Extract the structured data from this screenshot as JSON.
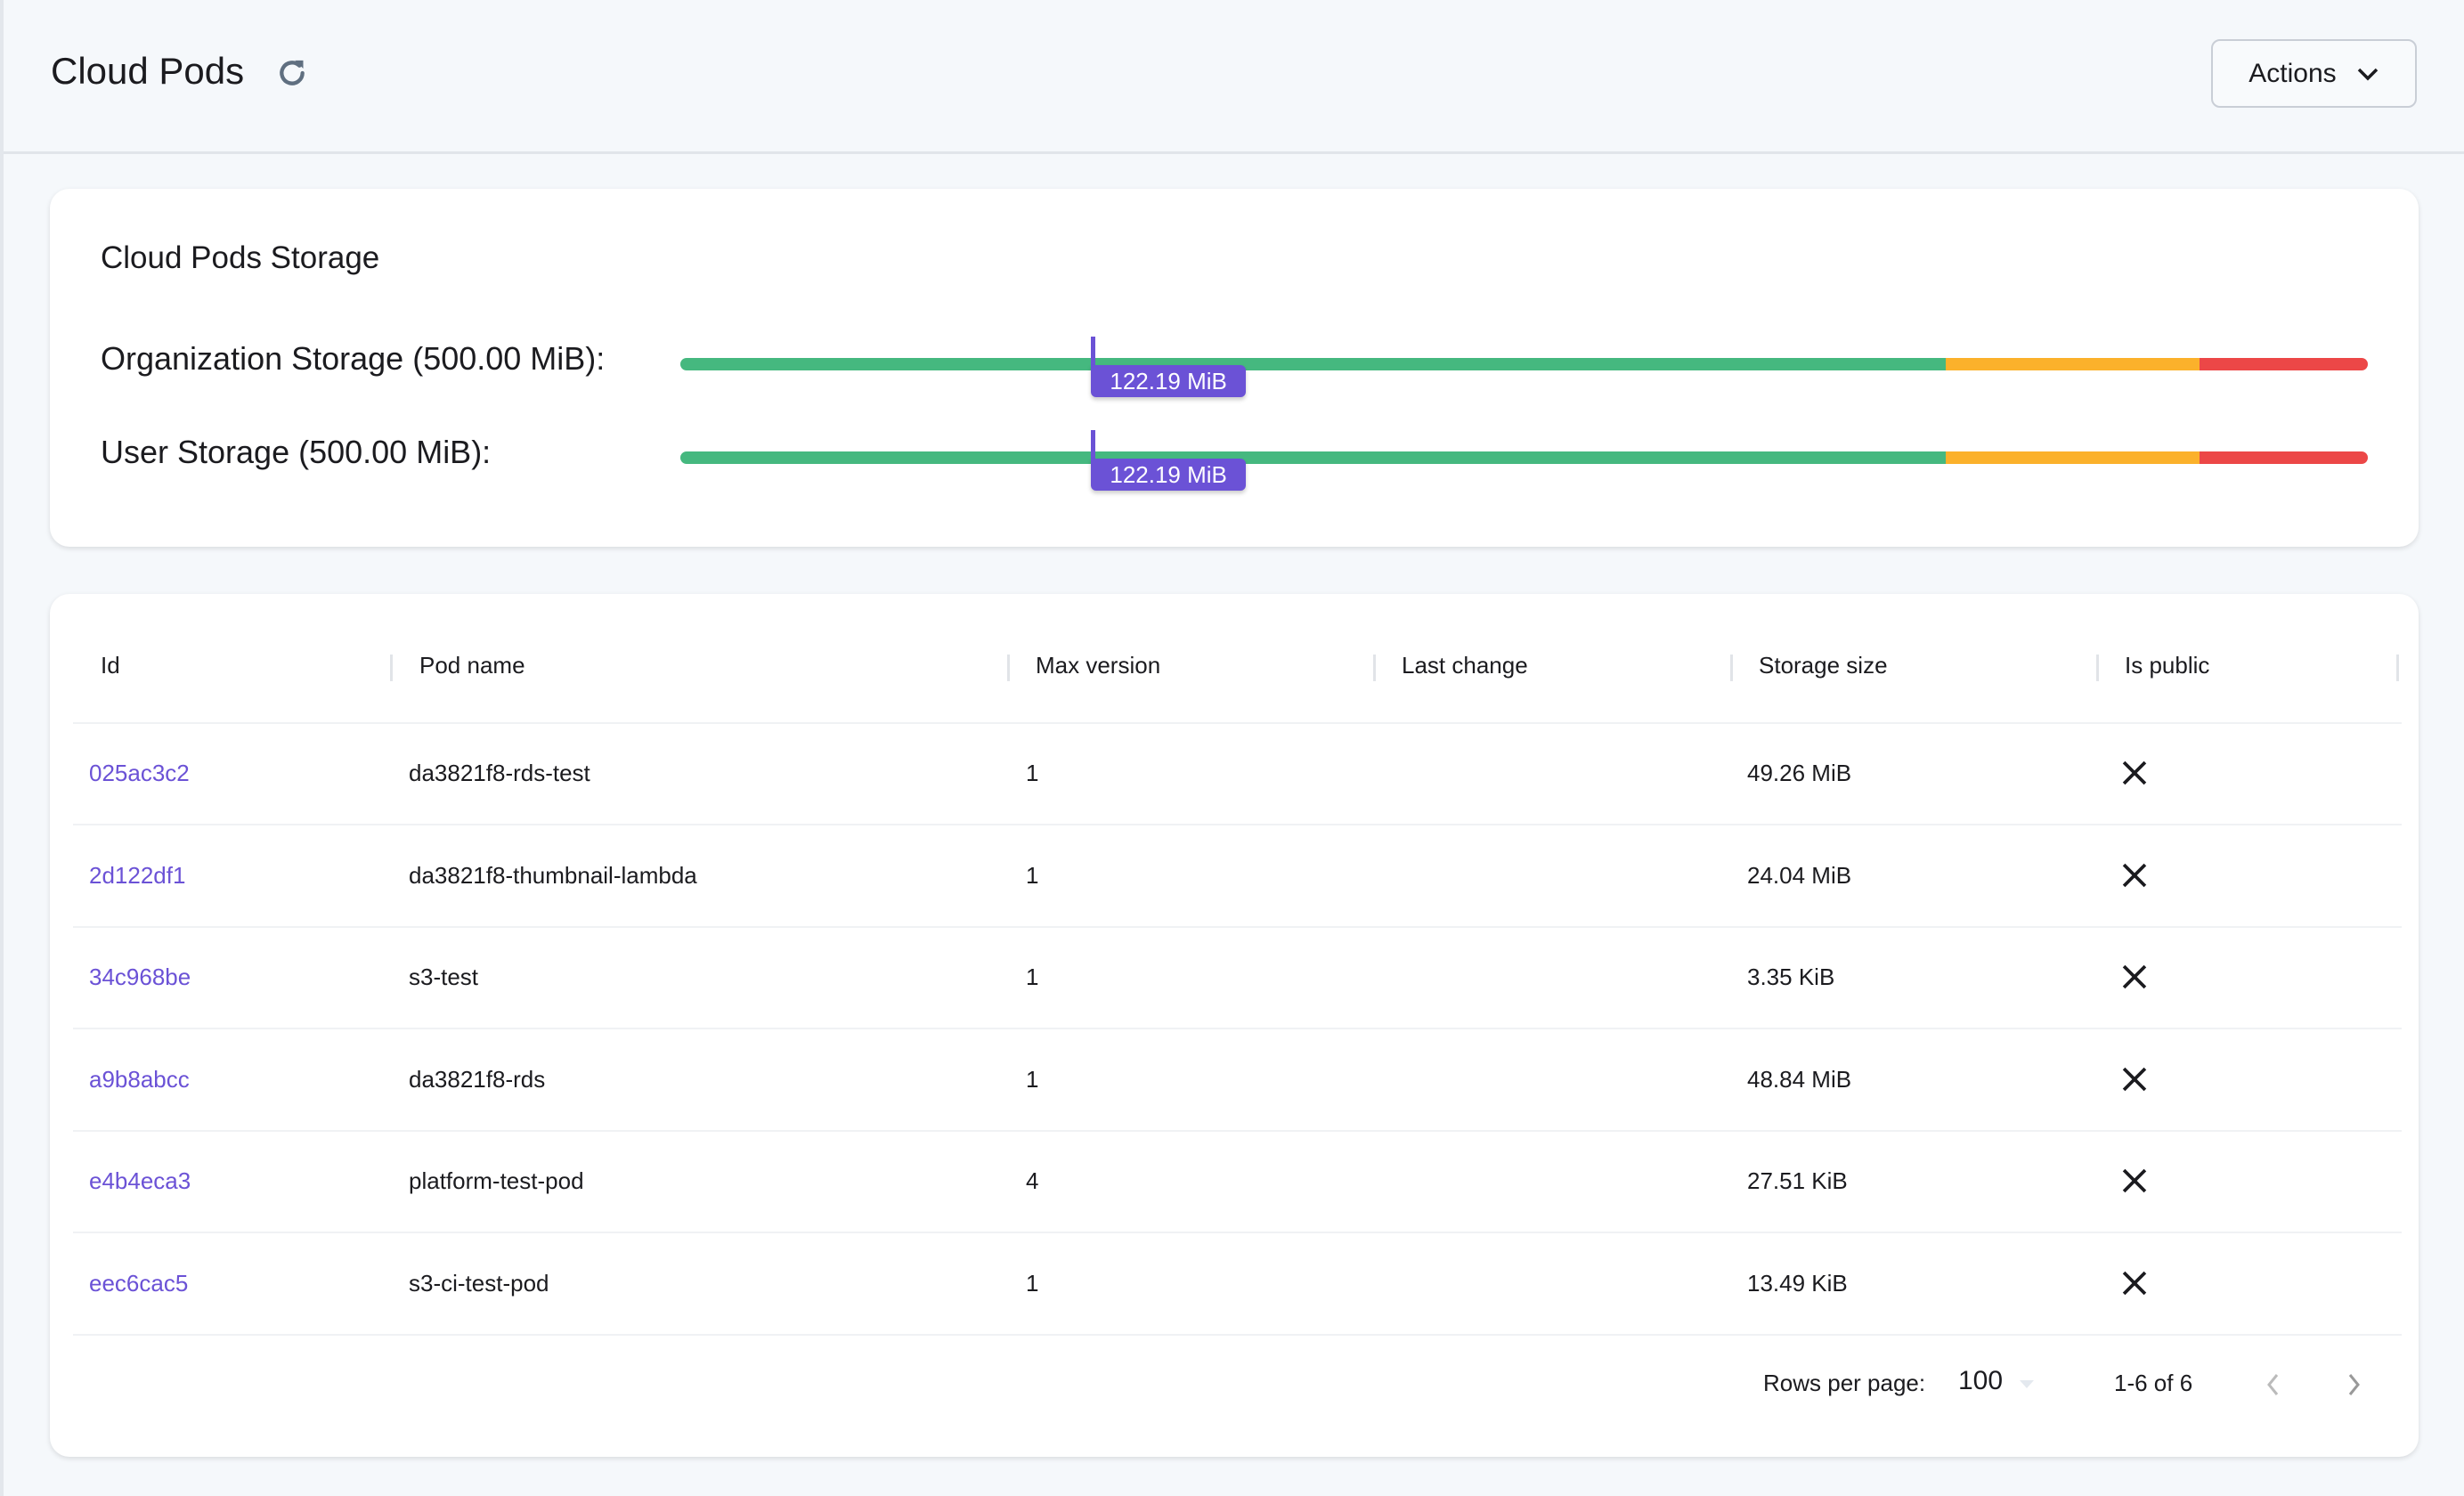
{
  "header": {
    "title": "Cloud Pods",
    "refresh_icon": "refresh-icon",
    "actions_label": "Actions"
  },
  "storage": {
    "title": "Cloud Pods Storage",
    "colors": {
      "green": "#45b87f",
      "orange": "#fbb12b",
      "red": "#ec4747",
      "marker": "#6b52d6"
    },
    "thresholds": [
      0.75,
      0.9,
      1.0
    ],
    "bars": [
      {
        "label": "Organization Storage (500.00 MiB):",
        "used_label": "122.19 MiB",
        "used_fraction": 0.2444
      },
      {
        "label": "User Storage (500.00 MiB):",
        "used_label": "122.19 MiB",
        "used_fraction": 0.2444
      }
    ]
  },
  "table": {
    "columns": [
      "Id",
      "Pod name",
      "Max version",
      "Last change",
      "Storage size",
      "Is public"
    ],
    "rows": [
      {
        "id": "025ac3c2",
        "name": "da3821f8-rds-test",
        "max": "1",
        "last": "",
        "size": "49.26 MiB",
        "public": false
      },
      {
        "id": "2d122df1",
        "name": "da3821f8-thumbnail-lambda",
        "max": "1",
        "last": "",
        "size": "24.04 MiB",
        "public": false
      },
      {
        "id": "34c968be",
        "name": "s3-test",
        "max": "1",
        "last": "",
        "size": "3.35 KiB",
        "public": false
      },
      {
        "id": "a9b8abcc",
        "name": "da3821f8-rds",
        "max": "1",
        "last": "",
        "size": "48.84 MiB",
        "public": false
      },
      {
        "id": "e4b4eca3",
        "name": "platform-test-pod",
        "max": "4",
        "last": "",
        "size": "27.51 KiB",
        "public": false
      },
      {
        "id": "eec6cac5",
        "name": "s3-ci-test-pod",
        "max": "1",
        "last": "",
        "size": "13.49 KiB",
        "public": false
      }
    ],
    "footer": {
      "rows_per_page_label": "Rows per page:",
      "rows_per_page": "100",
      "range": "1-6 of 6"
    }
  }
}
